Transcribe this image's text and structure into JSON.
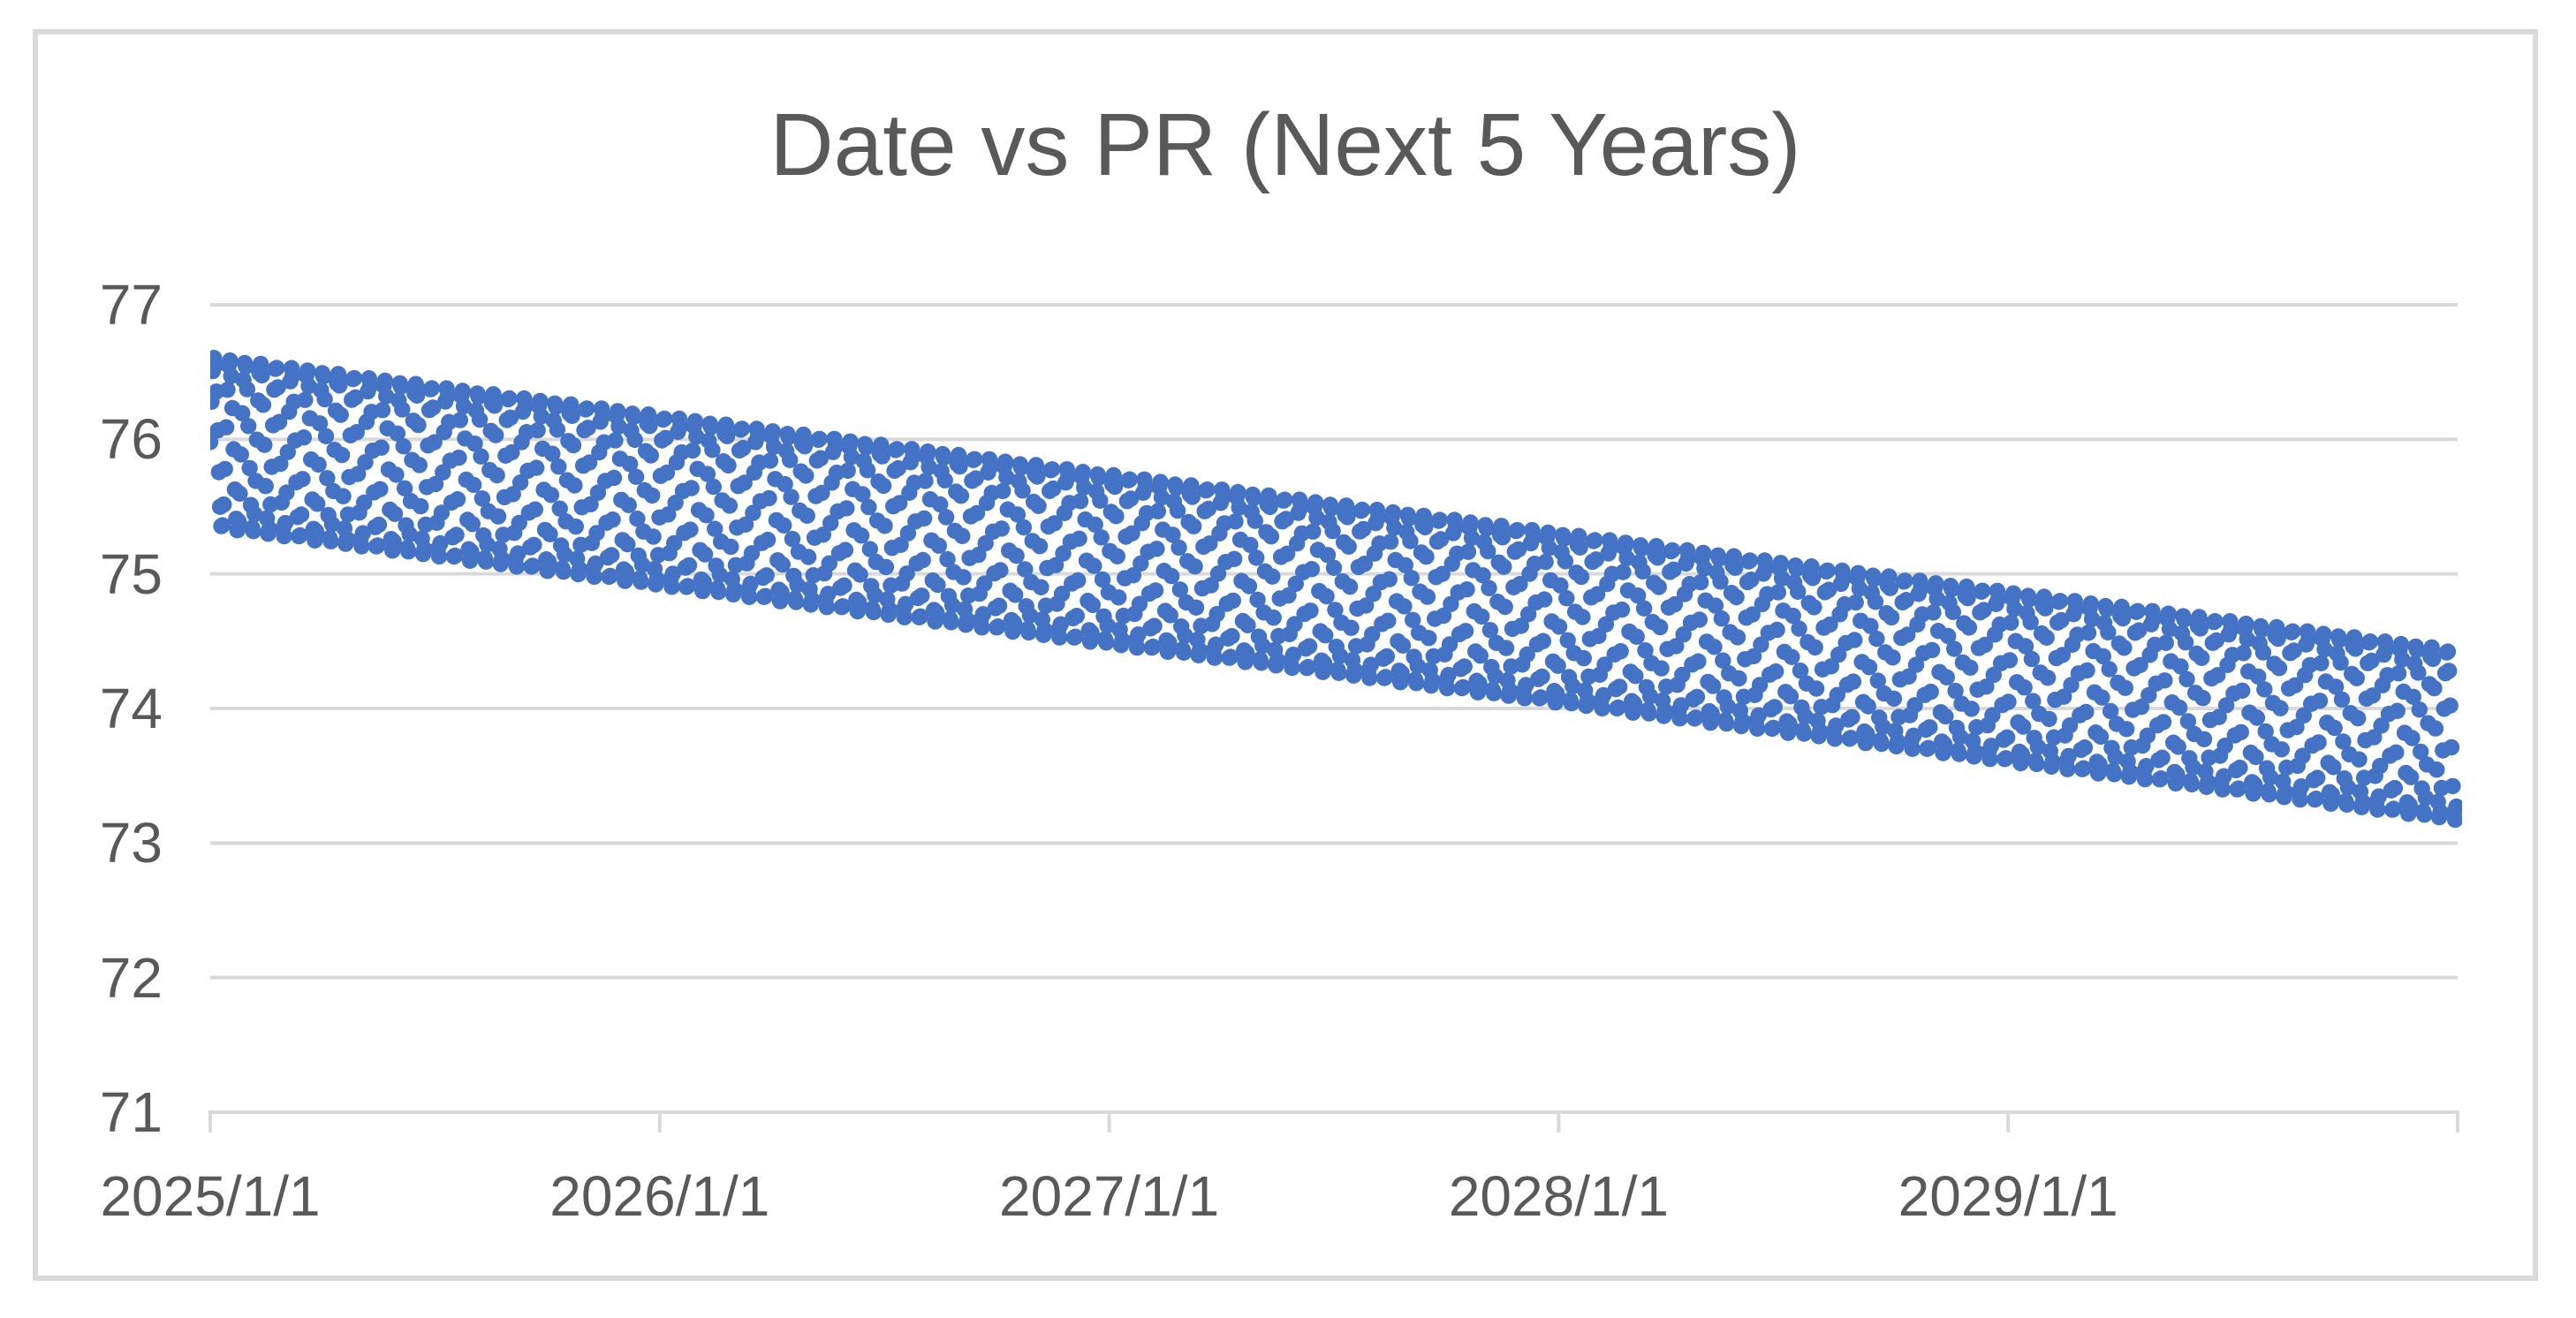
{
  "chart": {
    "title": "Date vs PR (Next 5 Years)",
    "colors": {
      "marker": "#4472C4",
      "gridline": "#D9D9D9",
      "axis_line": "#D9D9D9",
      "tick_mark": "#D9D9D9",
      "chart_border": "#D9D9D9",
      "text": "#595959",
      "background": "#FFFFFF"
    },
    "chart_data": {
      "type": "scatter",
      "title": "Date vs PR (Next 5 Years)",
      "xlabel": "",
      "ylabel": "",
      "x_tick_labels": [
        "2025/1/1",
        "2026/1/1",
        "2027/1/1",
        "2028/1/1",
        "2029/1/1"
      ],
      "y_tick_labels": [
        "77",
        "76",
        "75",
        "74",
        "73",
        "72",
        "71"
      ],
      "y_tick_values": [
        77,
        76,
        75,
        74,
        73,
        72,
        71
      ],
      "ylim": [
        71,
        77
      ],
      "x_span_years": 5,
      "grid": "horizontal gridlines only, every 1 unit",
      "legend": "none",
      "series": [
        {
          "name": "PR",
          "marker": "filled circle",
          "sampling": "daily",
          "n_points": 1826,
          "trend_start_value": 75.98,
          "trend_end_value": 73.8,
          "oscillation_amplitude": 0.63,
          "oscillation_period_days": 12.6,
          "band_envelope": [
            {
              "date": "2025/1/1",
              "top": 76.6,
              "bottom": 75.35
            },
            {
              "date": "2026/1/1",
              "top": 76.17,
              "bottom": 74.91
            },
            {
              "date": "2027/1/1",
              "top": 75.73,
              "bottom": 74.47
            },
            {
              "date": "2028/1/1",
              "top": 75.3,
              "bottom": 74.04
            },
            {
              "date": "2029/1/1",
              "top": 74.86,
              "bottom": 73.6
            },
            {
              "date": "2029/12/31",
              "top": 74.43,
              "bottom": 73.17
            }
          ]
        }
      ]
    }
  }
}
